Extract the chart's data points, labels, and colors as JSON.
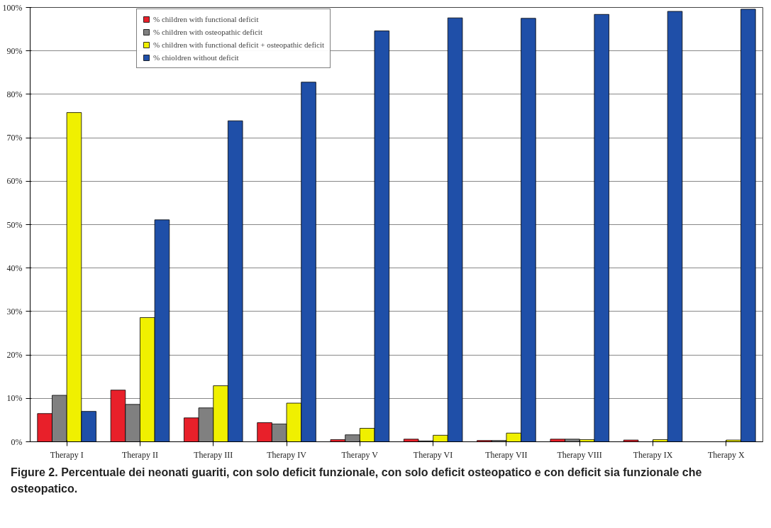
{
  "chart_data": {
    "type": "bar",
    "categories": [
      "Therapy I",
      "Therapy II",
      "Therapy III",
      "Therapy IV",
      "Therapy V",
      "Therapy VI",
      "Therapy VII",
      "Therapy VIII",
      "Therapy IX",
      "Therapy X"
    ],
    "series": [
      {
        "name": "% children with functional deficit",
        "color": "#e8202a",
        "values": [
          6.5,
          11.9,
          5.5,
          4.4,
          0.5,
          0.6,
          0.3,
          0.6,
          0.4,
          0
        ]
      },
      {
        "name": "% children with osteopathic deficit",
        "color": "#808080",
        "values": [
          10.7,
          8.6,
          7.8,
          4.1,
          1.6,
          0.2,
          0.3,
          0.6,
          0,
          0
        ]
      },
      {
        "name": "% children with functional deficit + osteopathic deficit",
        "color": "#f0f000",
        "values": [
          75.8,
          28.6,
          12.9,
          8.9,
          3.1,
          1.5,
          2.0,
          0.5,
          0.5,
          0.4
        ]
      },
      {
        "name": "% chioldren without deficit",
        "color": "#1f4fa8",
        "values": [
          7.0,
          51.1,
          73.9,
          82.8,
          94.6,
          97.6,
          97.5,
          98.4,
          99.1,
          99.6
        ]
      }
    ],
    "ylim": [
      0,
      100
    ],
    "yticks": [
      {
        "value": 0,
        "label": "0%"
      },
      {
        "value": 10,
        "label": "10%"
      },
      {
        "value": 20,
        "label": "20%"
      },
      {
        "value": 30,
        "label": "30%"
      },
      {
        "value": 40,
        "label": "40%"
      },
      {
        "value": 50,
        "label": "50%"
      },
      {
        "value": 60,
        "label": "60%"
      },
      {
        "value": 70,
        "label": "70%"
      },
      {
        "value": 80,
        "label": "80%"
      },
      {
        "value": 90,
        "label": "90%"
      },
      {
        "value": 100,
        "label": "100%"
      }
    ],
    "grid": "y",
    "legend": "top left",
    "annotations": [
      "Figure 2. Percentuale dei neonati guariti, con solo deficit funzionale, con solo deficit osteopatico e con deficit sia funzionale che osteopatico."
    ]
  }
}
